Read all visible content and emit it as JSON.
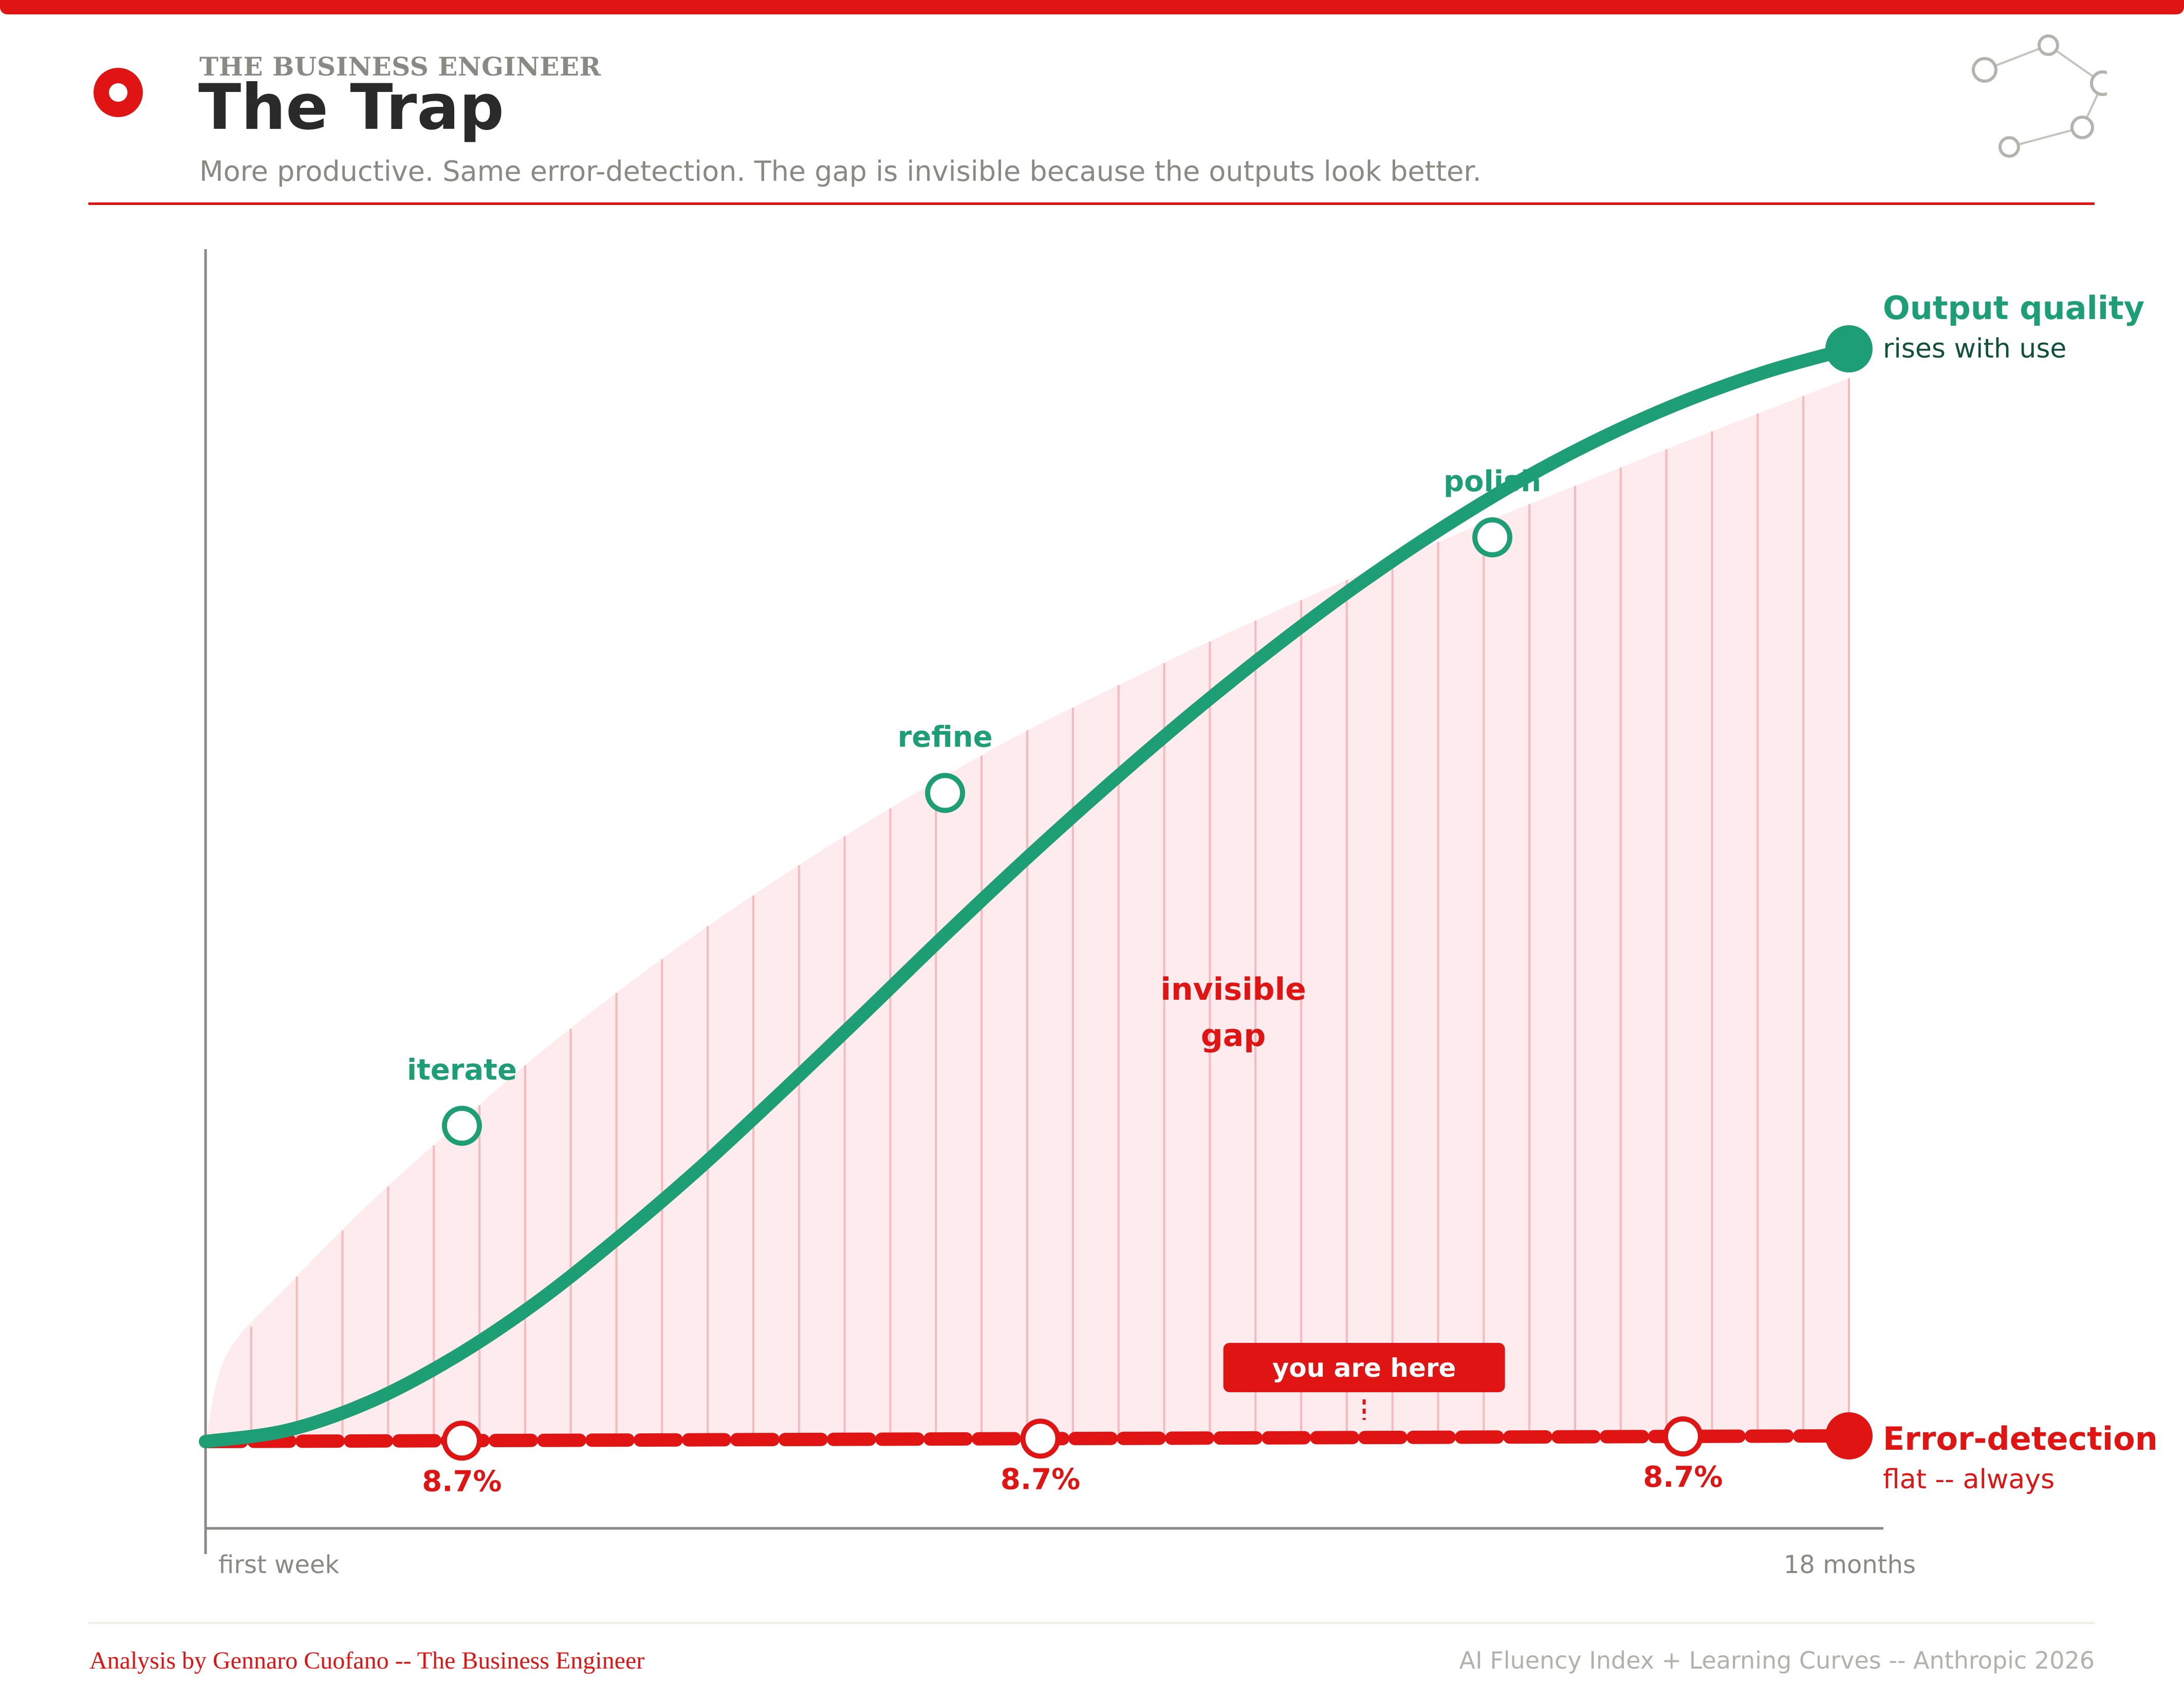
{
  "header": {
    "brand": "THE BUSINESS ENGINEER",
    "title": "The Trap",
    "subtitle": "More productive. Same error-detection. The gap is invisible because the outputs look better."
  },
  "colors": {
    "accent": "#e11414",
    "green": "#1e9e74",
    "muted": "#8a8a84",
    "gap_fill": "#fdebed",
    "gap_hatch": "#f6b9bc"
  },
  "icons": {
    "logo": "ring-logo-icon",
    "network": "network-nodes-icon"
  },
  "chart_data": {
    "type": "line",
    "title": "The Trap",
    "x_labels": {
      "start": "first week",
      "end": "18 months"
    },
    "xlim": [
      0,
      1
    ],
    "ylim": [
      0,
      1
    ],
    "series": [
      {
        "name": "Output quality",
        "note": "rises with use",
        "style": "solid",
        "x": [
          0,
          0.05,
          0.1,
          0.15,
          0.2,
          0.25,
          0.3,
          0.35,
          0.4,
          0.45,
          0.5,
          0.55,
          0.6,
          0.65,
          0.7,
          0.75,
          0.8,
          0.85,
          0.9,
          0.95,
          1.0
        ],
        "y": [
          0,
          0.01,
          0.035,
          0.073,
          0.121,
          0.178,
          0.24,
          0.307,
          0.376,
          0.446,
          0.514,
          0.579,
          0.641,
          0.699,
          0.753,
          0.802,
          0.846,
          0.884,
          0.916,
          0.942,
          0.962
        ]
      },
      {
        "name": "Error-detection",
        "note": "flat -- always",
        "style": "dashed",
        "x": [
          0,
          1.0
        ],
        "y": [
          0,
          0.005
        ]
      }
    ],
    "gap_envelope": {
      "x": [
        0,
        0.013,
        0.05,
        0.1,
        0.15,
        0.2,
        0.25,
        0.3,
        0.35,
        0.4,
        0.45,
        0.5,
        0.55,
        0.6,
        0.65,
        0.7,
        0.75,
        0.8,
        0.85,
        0.9,
        0.95,
        1.0
      ],
      "y": [
        0,
        0.077,
        0.137,
        0.21,
        0.275,
        0.338,
        0.395,
        0.448,
        0.497,
        0.543,
        0.586,
        0.626,
        0.662,
        0.697,
        0.73,
        0.762,
        0.792,
        0.822,
        0.851,
        0.88,
        0.908,
        0.936
      ]
    },
    "milestones": [
      {
        "label": "iterate",
        "x": 0.156,
        "y": 0.278
      },
      {
        "label": "refine",
        "x": 0.45,
        "y": 0.571
      },
      {
        "label": "polish",
        "x": 0.783,
        "y": 0.796
      }
    ],
    "error_markers": [
      {
        "label": "8.7%",
        "x": 0.156
      },
      {
        "label": "8.7%",
        "x": 0.508
      },
      {
        "label": "8.7%",
        "x": 0.899
      }
    ],
    "annotations": {
      "gap_label": [
        "invisible",
        "gap"
      ],
      "you_are_here": "you are here",
      "you_are_here_x": 0.705
    }
  },
  "footer": {
    "left": "Analysis by Gennaro Cuofano -- The Business Engineer",
    "right": "AI Fluency Index + Learning Curves -- Anthropic 2026"
  }
}
